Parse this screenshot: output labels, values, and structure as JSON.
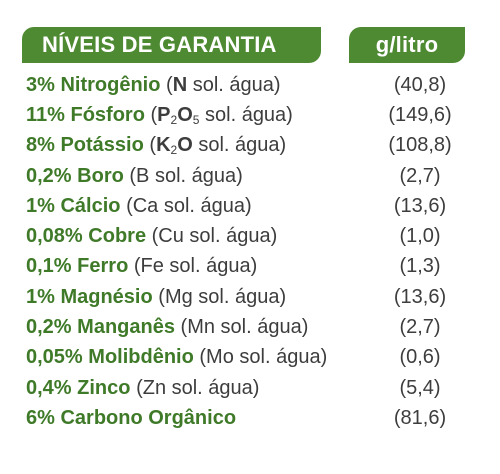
{
  "header": {
    "title": "NÍVEIS DE GARANTIA",
    "unit": "g/litro"
  },
  "rows": [
    {
      "pct": "3%",
      "name": "Nitrogênio",
      "open": "(",
      "el": "N",
      "sub": "",
      "el2": "",
      "sub2": "",
      "rest": " sol. água)",
      "value": "(40,8)"
    },
    {
      "pct": "11%",
      "name": "Fósforo",
      "open": "(",
      "el": "P",
      "sub": "2",
      "el2": "O",
      "sub2": "5",
      "rest": " sol. água)",
      "value": "(149,6)"
    },
    {
      "pct": "8%",
      "name": "Potássio",
      "open": "(",
      "el": "K",
      "sub": "2",
      "el2": "O",
      "sub2": "",
      "rest": " sol. água)",
      "value": "(108,8)"
    },
    {
      "pct": "0,2%",
      "name": "Boro",
      "open": "(B",
      "el": "",
      "sub": "",
      "el2": "",
      "sub2": "",
      "rest": " sol. água)",
      "value": "(2,7)"
    },
    {
      "pct": "1%",
      "name": "Cálcio",
      "open": "(Ca",
      "el": "",
      "sub": "",
      "el2": "",
      "sub2": "",
      "rest": " sol. água)",
      "value": "(13,6)"
    },
    {
      "pct": "0,08%",
      "name": "Cobre",
      "open": "(Cu",
      "el": "",
      "sub": "",
      "el2": "",
      "sub2": "",
      "rest": " sol. água)",
      "value": "(1,0)"
    },
    {
      "pct": "0,1%",
      "name": "Ferro",
      "open": "(Fe",
      "el": "",
      "sub": "",
      "el2": "",
      "sub2": "",
      "rest": " sol. água)",
      "value": "(1,3)"
    },
    {
      "pct": "1%",
      "name": "Magnésio",
      "open": "(Mg",
      "el": "",
      "sub": "",
      "el2": "",
      "sub2": "",
      "rest": " sol. água)",
      "value": "(13,6)"
    },
    {
      "pct": "0,2%",
      "name": "Manganês",
      "open": "(Mn",
      "el": "",
      "sub": "",
      "el2": "",
      "sub2": "",
      "rest": " sol. água)",
      "value": "(2,7)"
    },
    {
      "pct": "0,05%",
      "name": "Molibdênio",
      "open": "(Mo",
      "el": "",
      "sub": "",
      "el2": "",
      "sub2": "",
      "rest": " sol. água)",
      "value": "(0,6)"
    },
    {
      "pct": "0,4%",
      "name": "Zinco",
      "open": "(Zn",
      "el": "",
      "sub": "",
      "el2": "",
      "sub2": "",
      "rest": " sol. água)",
      "value": "(5,4)"
    },
    {
      "pct": "6%",
      "name": "Carbono Orgânico",
      "open": "",
      "el": "",
      "sub": "",
      "el2": "",
      "sub2": "",
      "rest": "",
      "value": "(81,6)"
    }
  ]
}
